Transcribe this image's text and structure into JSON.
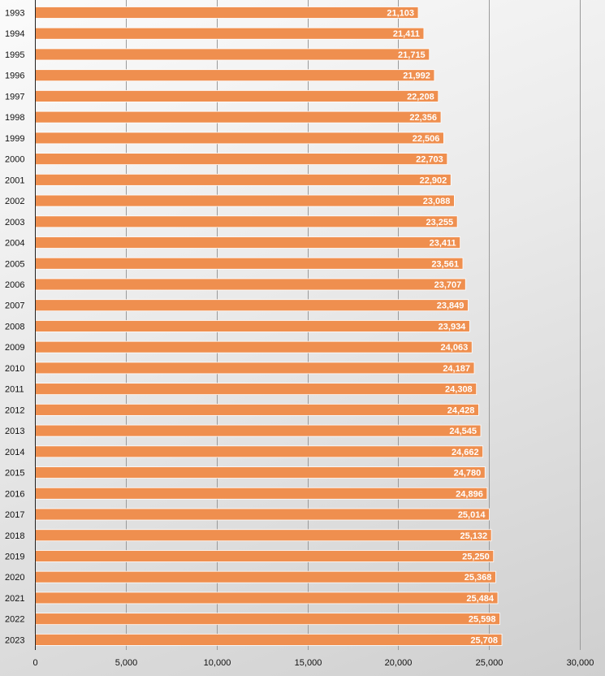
{
  "chart_data": {
    "type": "bar",
    "orientation": "horizontal",
    "title": "",
    "xlabel": "",
    "ylabel": "",
    "categories": [
      "1993",
      "1994",
      "1995",
      "1996",
      "1997",
      "1998",
      "1999",
      "2000",
      "2001",
      "2002",
      "2003",
      "2004",
      "2005",
      "2006",
      "2007",
      "2008",
      "2009",
      "2010",
      "2011",
      "2012",
      "2013",
      "2014",
      "2015",
      "2016",
      "2017",
      "2018",
      "2019",
      "2020",
      "2021",
      "2022",
      "2023"
    ],
    "values": [
      21103,
      21411,
      21715,
      21992,
      22208,
      22356,
      22506,
      22703,
      22902,
      23088,
      23255,
      23411,
      23561,
      23707,
      23849,
      23934,
      24063,
      24187,
      24308,
      24428,
      24545,
      24662,
      24780,
      24896,
      25014,
      25132,
      25250,
      25368,
      25484,
      25598,
      25708
    ],
    "value_labels": [
      "21,103",
      "21,411",
      "21,715",
      "21,992",
      "22,208",
      "22,356",
      "22,506",
      "22,703",
      "22,902",
      "23,088",
      "23,255",
      "23,411",
      "23,561",
      "23,707",
      "23,849",
      "23,934",
      "24,063",
      "24,187",
      "24,308",
      "24,428",
      "24,545",
      "24,662",
      "24,780",
      "24,896",
      "25,014",
      "25,132",
      "25,250",
      "25,368",
      "25,484",
      "25,598",
      "25,708"
    ],
    "xlim": [
      0,
      30000
    ],
    "x_ticks": [
      0,
      5000,
      10000,
      15000,
      20000,
      25000,
      30000
    ],
    "x_tick_labels": [
      "0",
      "5,000",
      "10,000",
      "15,000",
      "20,000",
      "25,000",
      "30,000"
    ],
    "grid": "vertical",
    "legend": "none",
    "colors": {
      "bar": "#ef8f4f",
      "bar_border": "#ffffff",
      "background_light": "#fbfbfb",
      "background_dark": "#cfcfcf",
      "grid": "#9a9a9a"
    }
  }
}
